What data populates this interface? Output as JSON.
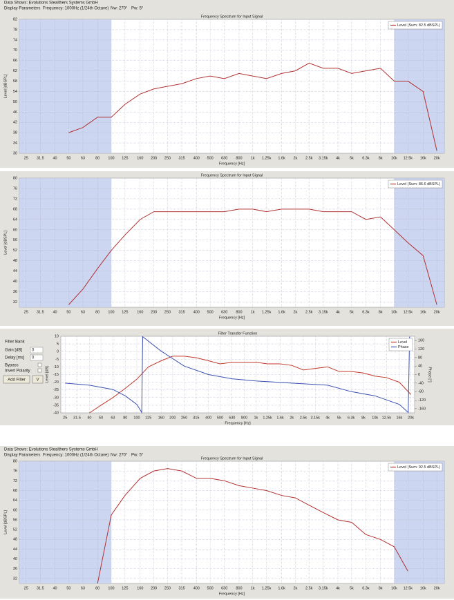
{
  "header": {
    "company": "Data Shows: Evolutions Stealthers Systems GmbH",
    "params": "Display Parameters",
    "frequency": "Frequency: 1000Hz (1/24th Octave)",
    "nw": "Nw: 270°",
    "pw": "Pw: 5°"
  },
  "footer_header": {
    "company": "Data Shows: Evolutions Stealthers Systems GmbH",
    "params": "Display Parameters",
    "frequency": "Frequency: 1000Hz (1/24th Octave)",
    "nw": "Nw: 270°",
    "pw": "Pw: 5°"
  },
  "filter_bank": {
    "title": "Filter Bank",
    "gain_label": "Gain [dB]",
    "gain_value": "0",
    "delay_label": "Delay [ms]",
    "delay_value": "0",
    "bypass": "Bypass",
    "invert": "Invert Polarity",
    "add": "Add Filter",
    "v": "V"
  },
  "chart_data": [
    {
      "type": "line",
      "title": "Frequency Spectrum for Input Signal",
      "xlabel": "Frequency [Hz]",
      "ylabel": "Level [dBSPL]",
      "x_scale": "log",
      "grid": true,
      "legend": "upper right",
      "highlight_color": "#c6d1f0",
      "highlight_ranges": [
        [
          22.4,
          100
        ],
        [
          10000,
          22600
        ]
      ],
      "x": [
        25,
        31.5,
        40,
        50,
        63,
        80,
        100,
        125,
        160,
        200,
        250,
        315,
        400,
        500,
        630,
        800,
        1000,
        1250,
        1600,
        2000,
        2500,
        3150,
        4000,
        5000,
        6300,
        8000,
        10000,
        12500,
        16000,
        20000
      ],
      "xlim": [
        22.4,
        22600
      ],
      "xticks": [
        25,
        31.5,
        40,
        50,
        63,
        80,
        100,
        125,
        160,
        200,
        250,
        315,
        400,
        500,
        630,
        800,
        {
          "value": 1000,
          "label": "1k"
        },
        {
          "value": 1250,
          "label": "1.25k"
        },
        {
          "value": 1600,
          "label": "1.6k"
        },
        {
          "value": 2000,
          "label": "2k"
        },
        {
          "value": 2500,
          "label": "2.5k"
        },
        {
          "value": 3150,
          "label": "3.15k"
        },
        {
          "value": 4000,
          "label": "4k"
        },
        {
          "value": 5000,
          "label": "5k"
        },
        {
          "value": 6300,
          "label": "6.3k"
        },
        {
          "value": 8000,
          "label": "8k"
        },
        {
          "value": 10000,
          "label": "10k"
        },
        {
          "value": 12500,
          "label": "12.5k"
        },
        {
          "value": 16000,
          "label": "16k"
        },
        {
          "value": 20000,
          "label": "20k"
        }
      ],
      "ylim": [
        30,
        82
      ],
      "yticks": [
        30,
        34,
        38,
        42,
        46,
        50,
        54,
        58,
        62,
        66,
        70,
        74,
        78,
        82
      ],
      "series": [
        {
          "name": "Level (Sum: 82.5 dBSPL)",
          "color": "#b03030",
          "values": [
            null,
            null,
            null,
            38,
            40,
            44,
            44,
            49,
            53,
            55,
            56,
            57,
            59,
            60,
            59,
            61,
            60,
            59,
            61,
            62,
            65,
            63,
            63,
            61,
            62,
            63,
            58,
            58,
            54,
            31
          ]
        }
      ]
    },
    {
      "type": "line",
      "title": "Frequency Spectrum for Input Signal",
      "xlabel": "Frequency [Hz]",
      "ylabel": "Level [dBSPL]",
      "x_scale": "log",
      "grid": true,
      "legend": "upper right",
      "highlight_color": "#c6d1f0",
      "highlight_ranges": [
        [
          22.4,
          100
        ],
        [
          10000,
          22600
        ]
      ],
      "x": [
        25,
        31.5,
        40,
        50,
        63,
        80,
        100,
        125,
        160,
        200,
        250,
        315,
        400,
        500,
        630,
        800,
        1000,
        1250,
        1600,
        2000,
        2500,
        3150,
        4000,
        5000,
        6300,
        8000,
        10000,
        12500,
        16000,
        20000
      ],
      "xlim": [
        22.4,
        22600
      ],
      "xticks": [
        25,
        31.5,
        40,
        50,
        63,
        80,
        100,
        125,
        160,
        200,
        250,
        315,
        400,
        500,
        630,
        800,
        {
          "value": 1000,
          "label": "1k"
        },
        {
          "value": 1250,
          "label": "1.25k"
        },
        {
          "value": 1600,
          "label": "1.6k"
        },
        {
          "value": 2000,
          "label": "2k"
        },
        {
          "value": 2500,
          "label": "2.5k"
        },
        {
          "value": 3150,
          "label": "3.15k"
        },
        {
          "value": 4000,
          "label": "4k"
        },
        {
          "value": 5000,
          "label": "5k"
        },
        {
          "value": 6300,
          "label": "6.3k"
        },
        {
          "value": 8000,
          "label": "8k"
        },
        {
          "value": 10000,
          "label": "10k"
        },
        {
          "value": 12500,
          "label": "12.5k"
        },
        {
          "value": 16000,
          "label": "16k"
        },
        {
          "value": 20000,
          "label": "20k"
        }
      ],
      "ylim": [
        30,
        80
      ],
      "yticks": [
        32,
        36,
        40,
        44,
        48,
        52,
        56,
        60,
        64,
        68,
        72,
        76,
        80
      ],
      "series": [
        {
          "name": "Level (Sum: 86.6 dBSPL)",
          "color": "#b03030",
          "values": [
            null,
            null,
            null,
            31,
            37,
            45,
            52,
            58,
            64,
            67,
            67,
            67,
            67,
            67,
            67,
            68,
            68,
            67,
            68,
            68,
            68,
            67,
            67,
            67,
            64,
            65,
            60,
            55,
            50,
            31
          ]
        }
      ]
    },
    {
      "type": "line",
      "title": "Filter Transfer Function",
      "xlabel": "Frequency [Hz]",
      "ylabel": "Level [dB]",
      "y2label": "Phase [°]",
      "x_scale": "log",
      "grid": true,
      "legend": "upper right",
      "xlim": [
        23,
        21500
      ],
      "xticks": [
        25,
        31.5,
        40,
        50,
        63,
        80,
        100,
        125,
        160,
        200,
        250,
        315,
        400,
        500,
        630,
        800,
        {
          "value": 1000,
          "label": "1k"
        },
        {
          "value": 1250,
          "label": "1.25k"
        },
        {
          "value": 1600,
          "label": "1.6k"
        },
        {
          "value": 2000,
          "label": "2k"
        },
        {
          "value": 2500,
          "label": "2.5k"
        },
        {
          "value": 3150,
          "label": "3.15k"
        },
        {
          "value": 4000,
          "label": "4k"
        },
        {
          "value": 5000,
          "label": "5k"
        },
        {
          "value": 6300,
          "label": "6.3k"
        },
        {
          "value": 8000,
          "label": "8k"
        },
        {
          "value": 10000,
          "label": "10k"
        },
        {
          "value": 12500,
          "label": "12.5k"
        },
        {
          "value": 16000,
          "label": "16k"
        },
        {
          "value": 20000,
          "label": "20k"
        }
      ],
      "ylim": [
        -40,
        10
      ],
      "yticks": [
        -40,
        -35,
        -30,
        -25,
        -20,
        -15,
        -10,
        -5,
        0,
        5,
        10
      ],
      "y2lim": [
        -180,
        180
      ],
      "y2ticks": [
        -160,
        -120,
        -80,
        -40,
        0,
        40,
        80,
        120,
        160
      ],
      "series": [
        {
          "name": "Level",
          "color": "#c0392b",
          "x": [
            40,
            50,
            63,
            80,
            100,
            125,
            160,
            200,
            250,
            315,
            400,
            500,
            630,
            800,
            1000,
            1250,
            1600,
            2000,
            2500,
            3150,
            4000,
            5000,
            6300,
            8000,
            10000,
            12500,
            16000,
            20000
          ],
          "values": [
            -40,
            -35,
            -30,
            -24,
            -18,
            -10,
            -6,
            -3,
            -3,
            -4,
            -6,
            -8,
            -7,
            -7,
            -7,
            -8,
            -8,
            -9,
            -12,
            -11,
            -10,
            -13,
            -13,
            -14,
            -16,
            -17,
            -20,
            -28
          ]
        },
        {
          "name": "Phase",
          "color": "#3a4fb0",
          "axis": "y2",
          "x": [
            25,
            40,
            63,
            80,
            100,
            110,
            112,
            160,
            250,
            400,
            630,
            1000,
            2000,
            4000,
            6300,
            10000,
            16000,
            19000,
            19500
          ],
          "values": [
            -40,
            -50,
            -70,
            -100,
            -140,
            -178,
            178,
            110,
            40,
            0,
            -20,
            -30,
            -40,
            -50,
            -80,
            -100,
            -140,
            -178,
            178
          ]
        }
      ]
    },
    {
      "type": "line",
      "title": "Frequency Spectrum for Input Signal",
      "xlabel": "Frequency [Hz]",
      "ylabel": "Level [dBSPL]",
      "x_scale": "log",
      "grid": true,
      "legend": "upper right",
      "highlight_color": "#c6d1f0",
      "highlight_ranges": [
        [
          22.4,
          100
        ],
        [
          10000,
          22600
        ]
      ],
      "x": [
        25,
        31.5,
        40,
        50,
        63,
        80,
        100,
        125,
        160,
        200,
        250,
        315,
        400,
        500,
        630,
        800,
        1000,
        1250,
        1600,
        2000,
        2500,
        3150,
        4000,
        5000,
        6300,
        8000,
        10000,
        12500,
        16000,
        20000
      ],
      "xlim": [
        22.4,
        22600
      ],
      "xticks": [
        25,
        31.5,
        40,
        50,
        63,
        80,
        100,
        125,
        160,
        200,
        250,
        315,
        400,
        500,
        630,
        800,
        {
          "value": 1000,
          "label": "1k"
        },
        {
          "value": 1250,
          "label": "1.25k"
        },
        {
          "value": 1600,
          "label": "1.6k"
        },
        {
          "value": 2000,
          "label": "2k"
        },
        {
          "value": 2500,
          "label": "2.5k"
        },
        {
          "value": 3150,
          "label": "3.15k"
        },
        {
          "value": 4000,
          "label": "4k"
        },
        {
          "value": 5000,
          "label": "5k"
        },
        {
          "value": 6300,
          "label": "6.3k"
        },
        {
          "value": 8000,
          "label": "8k"
        },
        {
          "value": 10000,
          "label": "10k"
        },
        {
          "value": 12500,
          "label": "12.5k"
        },
        {
          "value": 16000,
          "label": "16k"
        },
        {
          "value": 20000,
          "label": "20k"
        }
      ],
      "ylim": [
        30,
        80
      ],
      "yticks": [
        32,
        36,
        40,
        44,
        48,
        52,
        56,
        60,
        64,
        68,
        72,
        76,
        80
      ],
      "series": [
        {
          "name": "Level (Sum: 92.5 dBSPL)",
          "color": "#b03030",
          "values": [
            null,
            null,
            null,
            null,
            null,
            30,
            58,
            66,
            73,
            76,
            77,
            76,
            73,
            73,
            72,
            70,
            69,
            68,
            66,
            65,
            62,
            59,
            56,
            55,
            50,
            48,
            45,
            35,
            null,
            null
          ]
        }
      ]
    }
  ]
}
